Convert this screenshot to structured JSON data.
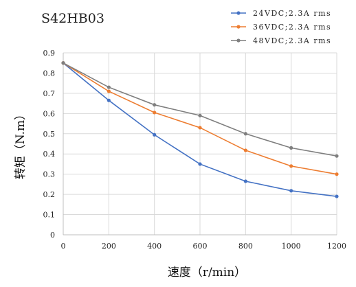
{
  "chart_data": {
    "type": "line",
    "title": "S42HB03",
    "xlabel": "速度（r/min）",
    "ylabel": "转矩（N.m）",
    "x": [
      0,
      200,
      400,
      600,
      800,
      1000,
      1200
    ],
    "xlim": [
      0,
      1200
    ],
    "ylim": [
      0,
      0.9
    ],
    "xticks": [
      "0",
      "200",
      "400",
      "600",
      "800",
      "1000",
      "1200"
    ],
    "yticks": [
      "0",
      "0.1",
      "0.2",
      "0.3",
      "0.4",
      "0.5",
      "0.6",
      "0.7",
      "0.8",
      "0.9"
    ],
    "grid": true,
    "legend_position": "top-right",
    "series": [
      {
        "name": "24VDC;2.3A rms",
        "color": "#4472c4",
        "values": [
          0.85,
          0.665,
          0.495,
          0.35,
          0.265,
          0.218,
          0.19
        ]
      },
      {
        "name": "36VDC;2.3A rms",
        "color": "#ed7d31",
        "values": [
          0.85,
          0.71,
          0.605,
          0.53,
          0.418,
          0.34,
          0.3
        ]
      },
      {
        "name": "48VDC;2.3A rms",
        "color": "#7f7f7f",
        "values": [
          0.85,
          0.73,
          0.643,
          0.59,
          0.5,
          0.43,
          0.39
        ]
      }
    ]
  }
}
